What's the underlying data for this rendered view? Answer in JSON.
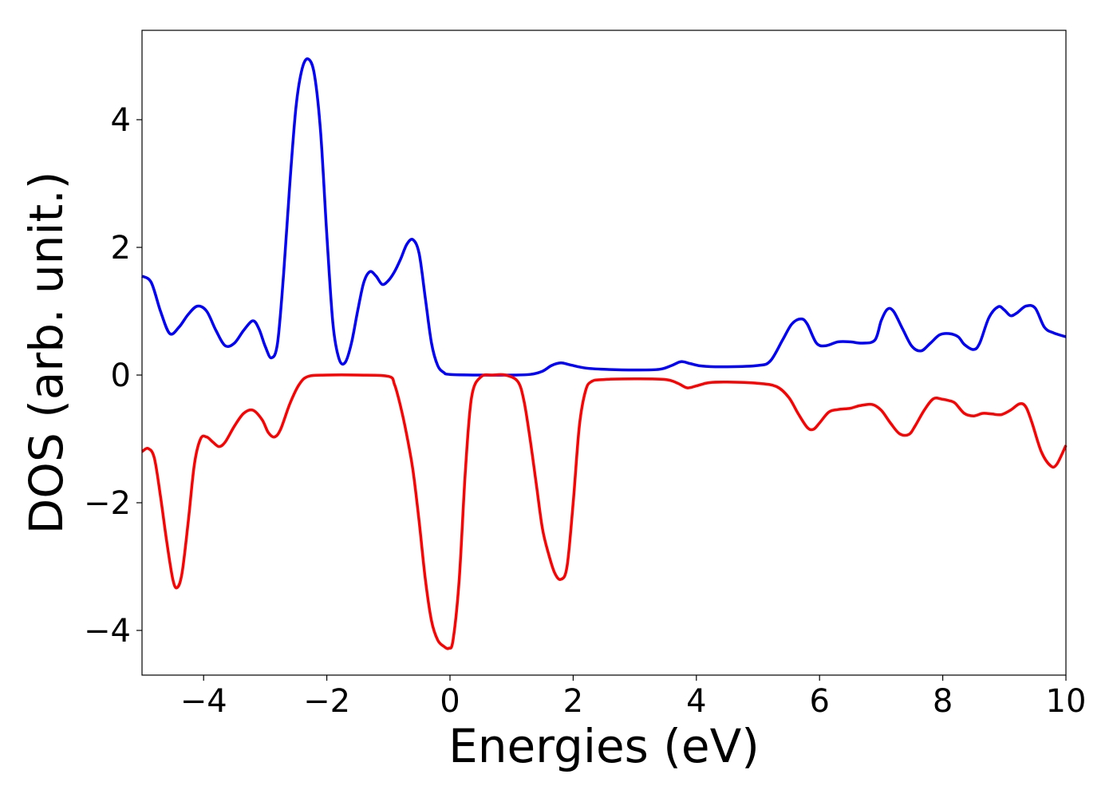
{
  "chart_data": {
    "type": "line",
    "title": "",
    "xlabel": "Energies (eV)",
    "ylabel": "DOS (arb. unit.)",
    "xlim": [
      -5,
      10
    ],
    "ylim": [
      -4.7,
      5.4
    ],
    "xticks": [
      -4,
      -2,
      0,
      2,
      4,
      6,
      8,
      10
    ],
    "xtick_labels": [
      "−4",
      "−2",
      "0",
      "2",
      "4",
      "6",
      "8",
      "10"
    ],
    "yticks": [
      -4,
      -2,
      0,
      2,
      4
    ],
    "ytick_labels": [
      "−4",
      "−2",
      "0",
      "2",
      "4"
    ],
    "grid": false,
    "legend": "none",
    "series": [
      {
        "color": "#0000ff",
        "points": [
          [
            -5.0,
            1.55
          ],
          [
            -4.85,
            1.45
          ],
          [
            -4.7,
            1.0
          ],
          [
            -4.55,
            0.65
          ],
          [
            -4.4,
            0.75
          ],
          [
            -4.25,
            0.95
          ],
          [
            -4.1,
            1.08
          ],
          [
            -3.95,
            1.0
          ],
          [
            -3.8,
            0.7
          ],
          [
            -3.65,
            0.46
          ],
          [
            -3.5,
            0.5
          ],
          [
            -3.35,
            0.7
          ],
          [
            -3.2,
            0.85
          ],
          [
            -3.1,
            0.72
          ],
          [
            -3.0,
            0.45
          ],
          [
            -2.9,
            0.27
          ],
          [
            -2.8,
            0.5
          ],
          [
            -2.7,
            1.6
          ],
          [
            -2.6,
            3.0
          ],
          [
            -2.5,
            4.2
          ],
          [
            -2.4,
            4.8
          ],
          [
            -2.3,
            4.95
          ],
          [
            -2.2,
            4.7
          ],
          [
            -2.1,
            3.8
          ],
          [
            -2.0,
            2.2
          ],
          [
            -1.9,
            0.8
          ],
          [
            -1.8,
            0.25
          ],
          [
            -1.7,
            0.2
          ],
          [
            -1.6,
            0.5
          ],
          [
            -1.5,
            1.0
          ],
          [
            -1.4,
            1.45
          ],
          [
            -1.3,
            1.62
          ],
          [
            -1.2,
            1.55
          ],
          [
            -1.1,
            1.42
          ],
          [
            -1.0,
            1.48
          ],
          [
            -0.9,
            1.62
          ],
          [
            -0.8,
            1.82
          ],
          [
            -0.7,
            2.05
          ],
          [
            -0.6,
            2.12
          ],
          [
            -0.5,
            1.9
          ],
          [
            -0.4,
            1.2
          ],
          [
            -0.3,
            0.5
          ],
          [
            -0.2,
            0.15
          ],
          [
            -0.1,
            0.04
          ],
          [
            0.0,
            0.01
          ],
          [
            0.5,
            0.0
          ],
          [
            1.0,
            0.0
          ],
          [
            1.3,
            0.01
          ],
          [
            1.5,
            0.06
          ],
          [
            1.65,
            0.15
          ],
          [
            1.8,
            0.19
          ],
          [
            1.95,
            0.16
          ],
          [
            2.2,
            0.11
          ],
          [
            2.5,
            0.09
          ],
          [
            3.0,
            0.08
          ],
          [
            3.4,
            0.09
          ],
          [
            3.6,
            0.15
          ],
          [
            3.75,
            0.21
          ],
          [
            3.9,
            0.18
          ],
          [
            4.1,
            0.14
          ],
          [
            4.5,
            0.13
          ],
          [
            5.0,
            0.15
          ],
          [
            5.2,
            0.22
          ],
          [
            5.4,
            0.55
          ],
          [
            5.55,
            0.8
          ],
          [
            5.7,
            0.88
          ],
          [
            5.8,
            0.8
          ],
          [
            5.95,
            0.5
          ],
          [
            6.1,
            0.46
          ],
          [
            6.3,
            0.52
          ],
          [
            6.5,
            0.52
          ],
          [
            6.7,
            0.5
          ],
          [
            6.9,
            0.55
          ],
          [
            7.0,
            0.85
          ],
          [
            7.1,
            1.03
          ],
          [
            7.2,
            1.0
          ],
          [
            7.35,
            0.72
          ],
          [
            7.5,
            0.45
          ],
          [
            7.65,
            0.38
          ],
          [
            7.8,
            0.5
          ],
          [
            7.95,
            0.63
          ],
          [
            8.1,
            0.65
          ],
          [
            8.25,
            0.6
          ],
          [
            8.35,
            0.48
          ],
          [
            8.5,
            0.4
          ],
          [
            8.6,
            0.5
          ],
          [
            8.75,
            0.9
          ],
          [
            8.9,
            1.07
          ],
          [
            9.0,
            1.02
          ],
          [
            9.1,
            0.93
          ],
          [
            9.2,
            0.97
          ],
          [
            9.35,
            1.08
          ],
          [
            9.5,
            1.05
          ],
          [
            9.65,
            0.75
          ],
          [
            9.8,
            0.66
          ],
          [
            10.0,
            0.6
          ]
        ]
      },
      {
        "color": "#ff0000",
        "points": [
          [
            -5.0,
            -1.2
          ],
          [
            -4.9,
            -1.15
          ],
          [
            -4.8,
            -1.3
          ],
          [
            -4.7,
            -1.9
          ],
          [
            -4.6,
            -2.6
          ],
          [
            -4.5,
            -3.2
          ],
          [
            -4.43,
            -3.33
          ],
          [
            -4.35,
            -3.1
          ],
          [
            -4.25,
            -2.3
          ],
          [
            -4.15,
            -1.4
          ],
          [
            -4.05,
            -1.0
          ],
          [
            -3.95,
            -0.97
          ],
          [
            -3.85,
            -1.05
          ],
          [
            -3.75,
            -1.12
          ],
          [
            -3.65,
            -1.05
          ],
          [
            -3.5,
            -0.8
          ],
          [
            -3.35,
            -0.6
          ],
          [
            -3.2,
            -0.55
          ],
          [
            -3.05,
            -0.7
          ],
          [
            -2.95,
            -0.9
          ],
          [
            -2.85,
            -0.97
          ],
          [
            -2.75,
            -0.85
          ],
          [
            -2.6,
            -0.45
          ],
          [
            -2.45,
            -0.15
          ],
          [
            -2.3,
            -0.02
          ],
          [
            -2.0,
            0.0
          ],
          [
            -1.5,
            0.0
          ],
          [
            -1.0,
            -0.02
          ],
          [
            -0.9,
            -0.15
          ],
          [
            -0.8,
            -0.5
          ],
          [
            -0.7,
            -0.95
          ],
          [
            -0.6,
            -1.5
          ],
          [
            -0.5,
            -2.3
          ],
          [
            -0.4,
            -3.2
          ],
          [
            -0.3,
            -3.85
          ],
          [
            -0.2,
            -4.15
          ],
          [
            -0.1,
            -4.25
          ],
          [
            -0.02,
            -4.28
          ],
          [
            0.05,
            -4.15
          ],
          [
            0.15,
            -3.2
          ],
          [
            0.25,
            -1.5
          ],
          [
            0.35,
            -0.35
          ],
          [
            0.5,
            -0.03
          ],
          [
            0.7,
            0.0
          ],
          [
            0.9,
            0.0
          ],
          [
            1.1,
            -0.1
          ],
          [
            1.2,
            -0.4
          ],
          [
            1.3,
            -1.0
          ],
          [
            1.4,
            -1.7
          ],
          [
            1.5,
            -2.4
          ],
          [
            1.6,
            -2.8
          ],
          [
            1.7,
            -3.1
          ],
          [
            1.8,
            -3.2
          ],
          [
            1.9,
            -3.0
          ],
          [
            2.0,
            -2.0
          ],
          [
            2.1,
            -0.8
          ],
          [
            2.2,
            -0.25
          ],
          [
            2.3,
            -0.1
          ],
          [
            2.5,
            -0.07
          ],
          [
            3.0,
            -0.06
          ],
          [
            3.5,
            -0.07
          ],
          [
            3.7,
            -0.13
          ],
          [
            3.85,
            -0.2
          ],
          [
            4.0,
            -0.17
          ],
          [
            4.2,
            -0.12
          ],
          [
            4.5,
            -0.11
          ],
          [
            5.0,
            -0.13
          ],
          [
            5.3,
            -0.18
          ],
          [
            5.5,
            -0.35
          ],
          [
            5.65,
            -0.6
          ],
          [
            5.8,
            -0.82
          ],
          [
            5.9,
            -0.85
          ],
          [
            6.0,
            -0.75
          ],
          [
            6.15,
            -0.58
          ],
          [
            6.3,
            -0.54
          ],
          [
            6.5,
            -0.52
          ],
          [
            6.65,
            -0.48
          ],
          [
            6.85,
            -0.46
          ],
          [
            7.0,
            -0.55
          ],
          [
            7.15,
            -0.75
          ],
          [
            7.3,
            -0.92
          ],
          [
            7.45,
            -0.93
          ],
          [
            7.55,
            -0.8
          ],
          [
            7.7,
            -0.55
          ],
          [
            7.85,
            -0.37
          ],
          [
            8.0,
            -0.38
          ],
          [
            8.1,
            -0.4
          ],
          [
            8.2,
            -0.44
          ],
          [
            8.35,
            -0.6
          ],
          [
            8.5,
            -0.64
          ],
          [
            8.65,
            -0.6
          ],
          [
            8.8,
            -0.61
          ],
          [
            8.95,
            -0.62
          ],
          [
            9.1,
            -0.55
          ],
          [
            9.25,
            -0.45
          ],
          [
            9.35,
            -0.5
          ],
          [
            9.45,
            -0.75
          ],
          [
            9.6,
            -1.2
          ],
          [
            9.75,
            -1.42
          ],
          [
            9.85,
            -1.4
          ],
          [
            10.0,
            -1.1
          ]
        ]
      }
    ]
  }
}
